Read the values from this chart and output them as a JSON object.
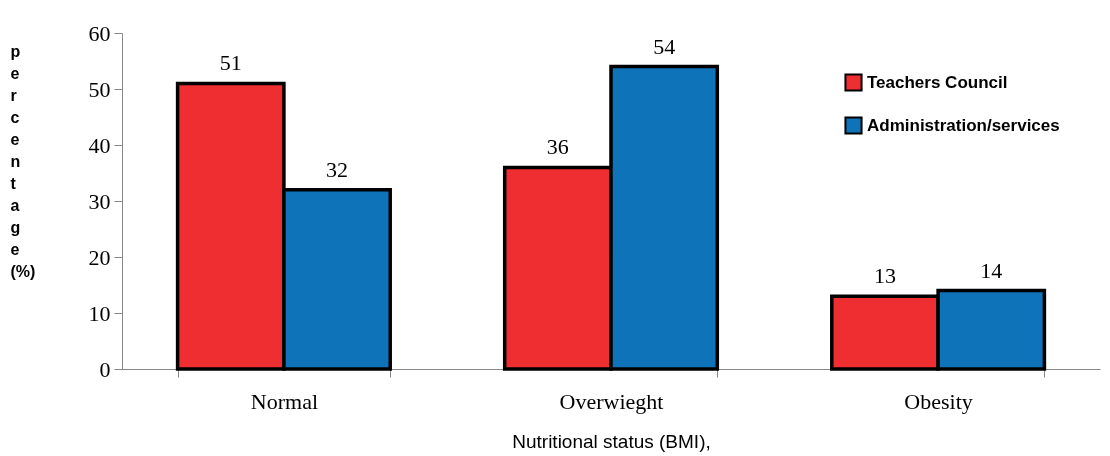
{
  "chart_data": {
    "type": "bar",
    "xlabel": "Nutritional status (BMI),",
    "ylabel": "percentage (%)",
    "categories": [
      "Normal",
      "Overwieght",
      "Obesity"
    ],
    "series": [
      {
        "name": "Teachers Council",
        "color": "#ee2e31",
        "values": [
          51,
          36,
          13
        ]
      },
      {
        "name": "Administration/services",
        "color": "#0e73b9",
        "values": [
          32,
          54,
          14
        ]
      }
    ],
    "ylim": [
      0,
      60
    ],
    "yticks": [
      0,
      10,
      20,
      30,
      40,
      50,
      60
    ],
    "grid": false,
    "legend": "top right",
    "data_labels": true
  }
}
